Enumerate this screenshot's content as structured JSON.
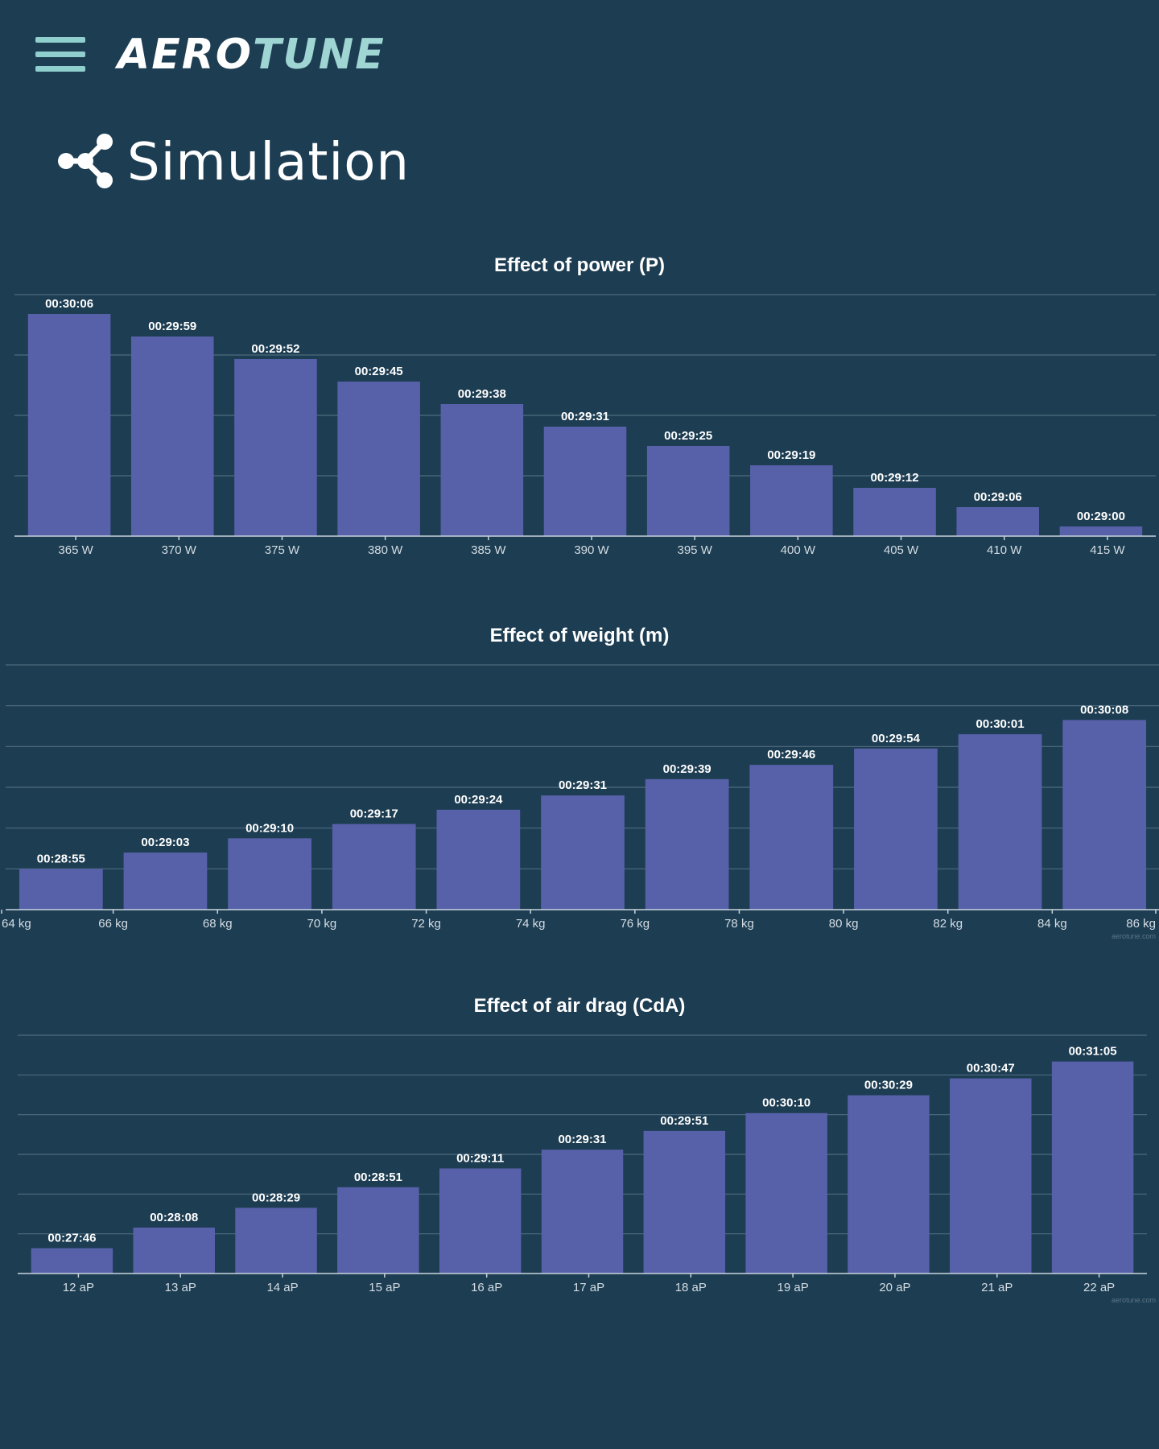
{
  "app": {
    "logo_part1": "AERO",
    "logo_part2": "TUNE",
    "page_title": "Simulation",
    "accent_color": "#9fd6d4",
    "background_color": "#1d3d52",
    "bar_color": "#5761aa"
  },
  "icons": {
    "menu": "hamburger-menu-icon",
    "page": "share-nodes-icon"
  },
  "chart_data": [
    {
      "type": "bar",
      "title": "Effect of power (P)",
      "categories": [
        "365 W",
        "370 W",
        "375 W",
        "380 W",
        "385 W",
        "390 W",
        "395 W",
        "400 W",
        "405 W",
        "410 W",
        "415 W"
      ],
      "labels": [
        "00:30:06",
        "00:29:59",
        "00:29:52",
        "00:29:45",
        "00:29:38",
        "00:29:31",
        "00:29:25",
        "00:29:19",
        "00:29:12",
        "00:29:06",
        "00:29:00"
      ],
      "values": [
        1806,
        1799,
        1792,
        1785,
        1778,
        1771,
        1765,
        1759,
        1752,
        1746,
        1740
      ],
      "ylim": [
        1737,
        1812
      ],
      "grid_lines": 4,
      "xlabel": "",
      "ylabel": "",
      "tick_mode": "center",
      "credit": ""
    },
    {
      "type": "bar",
      "title": "Effect of weight (m)",
      "categories": [
        "64 kg",
        "66 kg",
        "68 kg",
        "70 kg",
        "72 kg",
        "74 kg",
        "76 kg",
        "78 kg",
        "80 kg",
        "82 kg",
        "84 kg",
        "86 kg"
      ],
      "labels": [
        "00:28:55",
        "00:29:03",
        "00:29:10",
        "00:29:17",
        "00:29:24",
        "00:29:31",
        "00:29:39",
        "00:29:46",
        "00:29:54",
        "00:30:01",
        "00:30:08"
      ],
      "values": [
        1735,
        1743,
        1750,
        1757,
        1764,
        1771,
        1779,
        1786,
        1794,
        1801,
        1808
      ],
      "ylim": [
        1715,
        1835
      ],
      "grid_lines": 6,
      "xlabel": "",
      "ylabel": "",
      "tick_mode": "edges",
      "credit": "aerotune.com"
    },
    {
      "type": "bar",
      "title": "Effect of air drag (CdA)",
      "categories": [
        "12 aP",
        "13 aP",
        "14 aP",
        "15 aP",
        "16 aP",
        "17 aP",
        "18 aP",
        "19 aP",
        "20 aP",
        "21 aP",
        "22 aP"
      ],
      "labels": [
        "00:27:46",
        "00:28:08",
        "00:28:29",
        "00:28:51",
        "00:29:11",
        "00:29:31",
        "00:29:51",
        "00:30:10",
        "00:30:29",
        "00:30:47",
        "00:31:05"
      ],
      "values": [
        1666,
        1688,
        1709,
        1731,
        1751,
        1771,
        1791,
        1810,
        1829,
        1847,
        1865
      ],
      "ylim": [
        1639,
        1893
      ],
      "grid_lines": 6,
      "xlabel": "",
      "ylabel": "",
      "tick_mode": "center",
      "credit": "aerotune.com"
    }
  ]
}
